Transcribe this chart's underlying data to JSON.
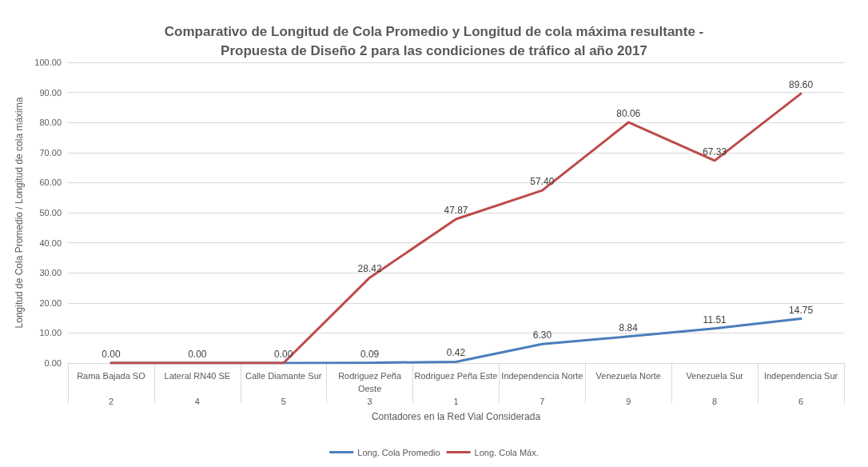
{
  "chart_data": {
    "type": "line",
    "title": "Comparativo de Longitud de Cola Promedio y Longitud de cola máxima resultante -\nPropuesta de Diseño 2 para las condiciones de tráfico al año 2017",
    "xlabel": "Contadores en la Red Vial Considerada",
    "ylabel": "Longitud de Cola Promedio / Longitud de cola máxima",
    "categories": [
      "Rama Bajada SO\n2",
      "Lateral RN40 SE\n4",
      "Calle Diamante Sur\n5",
      "Rodriguez Peña\nOeste\n3",
      "Rodriguez Peña Este\n1",
      "Independencia Norte\n7",
      "Venezuela Norte\n9",
      "Venezuela Sur\n8",
      "Independencia Sur\n6"
    ],
    "series": [
      {
        "name": "Long. Cola Promedio",
        "color": "#4a7ebb",
        "values": [
          0,
          0,
          0,
          0.09,
          0.42,
          6.3,
          8.84,
          11.51,
          14.75
        ],
        "value_labels": [
          "0.00",
          "0.00",
          "0.00",
          "0.09",
          "0.42",
          "6.30",
          "8.84",
          "11.51",
          "14.75"
        ]
      },
      {
        "name": "Long. Cola Máx.",
        "color": "#be4b48",
        "values": [
          0,
          0,
          0,
          28.42,
          47.87,
          57.4,
          80.06,
          67.33,
          89.6
        ],
        "value_labels": [
          null,
          null,
          null,
          "28.42",
          "47.87",
          "57.40",
          "80.06",
          "67.33",
          "89.60"
        ]
      }
    ],
    "ylim": [
      0,
      100
    ],
    "yticks": [
      {
        "value": 0,
        "label": "0.00"
      },
      {
        "value": 10,
        "label": "10.00"
      },
      {
        "value": 20,
        "label": "20.00"
      },
      {
        "value": 30,
        "label": "30.00"
      },
      {
        "value": 40,
        "label": "40.00"
      },
      {
        "value": 50,
        "label": "50.00"
      },
      {
        "value": 60,
        "label": "60.00"
      },
      {
        "value": 70,
        "label": "70.00"
      },
      {
        "value": 80,
        "label": "80.00"
      },
      {
        "value": 90,
        "label": "90.00"
      },
      {
        "value": 100,
        "label": "100.00"
      }
    ],
    "grid": "y",
    "legend": "bottom",
    "marker": "none",
    "line_style": "solid"
  }
}
